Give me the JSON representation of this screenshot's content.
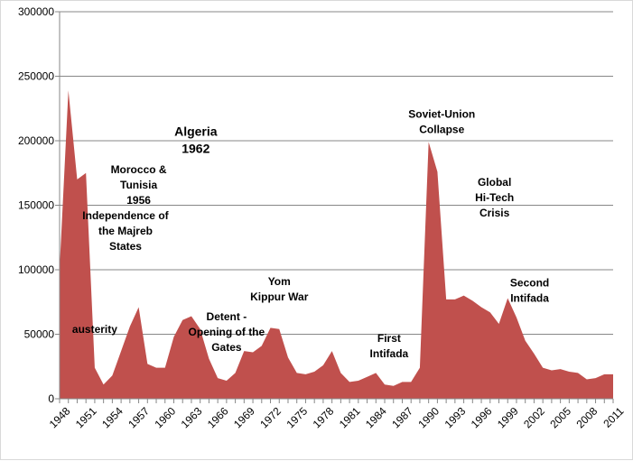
{
  "chart_data": {
    "type": "area",
    "title": "",
    "xlabel": "",
    "ylabel": "",
    "ylim": [
      0,
      300000
    ],
    "grid": true,
    "legend": "none",
    "color": "#c0504d",
    "y_ticks": [
      "0",
      "50000",
      "100000",
      "150000",
      "200000",
      "250000",
      "300000"
    ],
    "x_ticks": [
      "1948",
      "1951",
      "1954",
      "1957",
      "1960",
      "1963",
      "1966",
      "1969",
      "1972",
      "1975",
      "1978",
      "1981",
      "1984",
      "1987",
      "1990",
      "1993",
      "1996",
      "1999",
      "2002",
      "2005",
      "2008",
      "2011"
    ],
    "x": [
      1948,
      1949,
      1950,
      1951,
      1952,
      1953,
      1954,
      1955,
      1956,
      1957,
      1958,
      1959,
      1960,
      1961,
      1962,
      1963,
      1964,
      1965,
      1966,
      1967,
      1968,
      1969,
      1970,
      1971,
      1972,
      1973,
      1974,
      1975,
      1976,
      1977,
      1978,
      1979,
      1980,
      1981,
      1982,
      1983,
      1984,
      1985,
      1986,
      1987,
      1988,
      1989,
      1990,
      1991,
      1992,
      1993,
      1994,
      1995,
      1996,
      1997,
      1998,
      1999,
      2000,
      2001,
      2002,
      2003,
      2004,
      2005,
      2006,
      2007,
      2008,
      2009,
      2010,
      2011
    ],
    "values": [
      101000,
      239000,
      170000,
      175000,
      24000,
      11000,
      18000,
      37000,
      56000,
      71000,
      27000,
      24000,
      24000,
      48000,
      61000,
      64000,
      54000,
      31000,
      16000,
      14000,
      20000,
      37000,
      36000,
      41000,
      55000,
      54000,
      32000,
      20000,
      19000,
      21000,
      26000,
      37000,
      20000,
      13000,
      14000,
      17000,
      20000,
      11000,
      10000,
      13000,
      13000,
      24000,
      199000,
      176000,
      77000,
      77000,
      80000,
      76000,
      71000,
      67000,
      58000,
      78000,
      63000,
      45000,
      35000,
      24000,
      22000,
      23000,
      21000,
      20000,
      15000,
      16000,
      19000,
      19000
    ],
    "annotations": [
      {
        "lines": [
          "Morocco &",
          "Tunisia",
          "1956"
        ],
        "x": 1957,
        "y": 175000
      },
      {
        "lines": [
          "Algeria",
          "1962"
        ],
        "x": 1963.5,
        "y": 204000,
        "big": true
      },
      {
        "lines": [
          "Independence of",
          "the Majreb",
          "States"
        ],
        "x": 1955.5,
        "y": 139000
      },
      {
        "lines": [
          "austerity"
        ],
        "x": 1952,
        "y": 51000
      },
      {
        "lines": [
          "Detent -",
          "Opening of the",
          "Gates"
        ],
        "x": 1967,
        "y": 61000
      },
      {
        "lines": [
          "Yom",
          "Kippur War"
        ],
        "x": 1973,
        "y": 88000
      },
      {
        "lines": [
          "Soviet-Union",
          "Collapse"
        ],
        "x": 1991.5,
        "y": 218000
      },
      {
        "lines": [
          "First",
          "Intifada"
        ],
        "x": 1985.5,
        "y": 44000
      },
      {
        "lines": [
          "Global",
          "Hi-Tech",
          "Crisis"
        ],
        "x": 1997.5,
        "y": 165000
      },
      {
        "lines": [
          "Second",
          "Intifada"
        ],
        "x": 2001.5,
        "y": 87000
      }
    ]
  }
}
